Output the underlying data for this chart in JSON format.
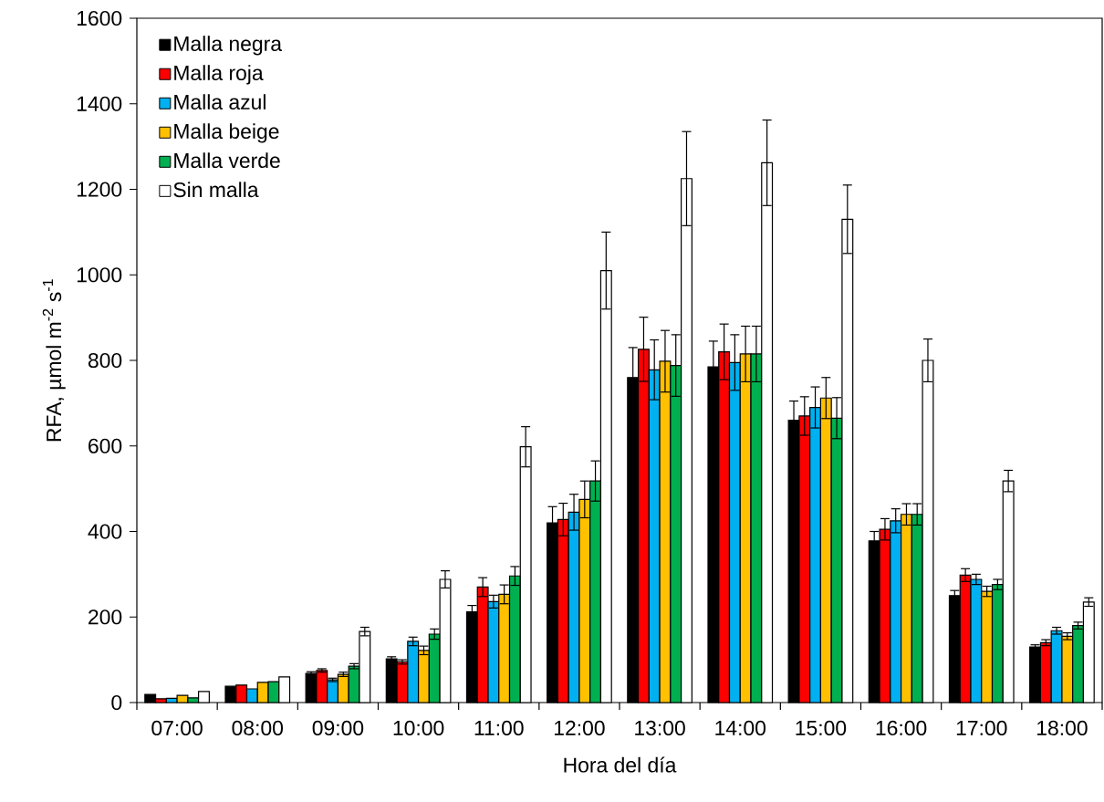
{
  "chart_data": {
    "type": "bar",
    "xlabel": "Hora del día",
    "ylabel": "RFA, µmol m$^{-2}$ s$^{-1}$",
    "categories": [
      "07:00",
      "08:00",
      "09:00",
      "10:00",
      "11:00",
      "12:00",
      "13:00",
      "14:00",
      "15:00",
      "16:00",
      "17:00",
      "18:00"
    ],
    "ylim": [
      0,
      1600
    ],
    "yticks": [
      0,
      200,
      400,
      600,
      800,
      1000,
      1200,
      1400,
      1600
    ],
    "legend": "top left",
    "series": [
      {
        "name": "Malla negra",
        "color": "#000000",
        "values": [
          19,
          38,
          68,
          102,
          212,
          420,
          760,
          785,
          660,
          378,
          250,
          130
        ],
        "errors": [
          null,
          null,
          4,
          5,
          15,
          38,
          70,
          60,
          45,
          22,
          12,
          5
        ]
      },
      {
        "name": "Malla roja",
        "color": "#ff0000",
        "values": [
          9,
          41,
          75,
          95,
          270,
          428,
          826,
          820,
          670,
          405,
          298,
          140
        ],
        "errors": [
          null,
          null,
          4,
          5,
          22,
          38,
          75,
          65,
          45,
          25,
          15,
          7
        ]
      },
      {
        "name": "Malla azul",
        "color": "#00b0f0",
        "values": [
          10,
          32,
          53,
          143,
          236,
          445,
          778,
          795,
          690,
          425,
          288,
          168
        ],
        "errors": [
          null,
          null,
          4,
          10,
          15,
          42,
          70,
          65,
          48,
          28,
          12,
          8
        ]
      },
      {
        "name": "Malla beige",
        "color": "#ffc000",
        "values": [
          17,
          47,
          66,
          122,
          253,
          475,
          798,
          815,
          712,
          440,
          260,
          155
        ],
        "errors": [
          null,
          null,
          5,
          10,
          22,
          43,
          72,
          65,
          48,
          25,
          12,
          8
        ]
      },
      {
        "name": "Malla verde",
        "color": "#00b050",
        "values": [
          11,
          49,
          85,
          160,
          296,
          518,
          788,
          815,
          665,
          440,
          276,
          180
        ],
        "errors": [
          null,
          null,
          6,
          12,
          22,
          47,
          72,
          65,
          48,
          25,
          12,
          8
        ]
      },
      {
        "name": "Sin malla",
        "color": "#ffffff",
        "values": [
          26,
          60,
          166,
          288,
          598,
          1010,
          1225,
          1262,
          1130,
          800,
          518,
          235
        ],
        "errors": [
          null,
          null,
          10,
          20,
          47,
          90,
          110,
          100,
          80,
          50,
          25,
          10
        ]
      }
    ]
  }
}
